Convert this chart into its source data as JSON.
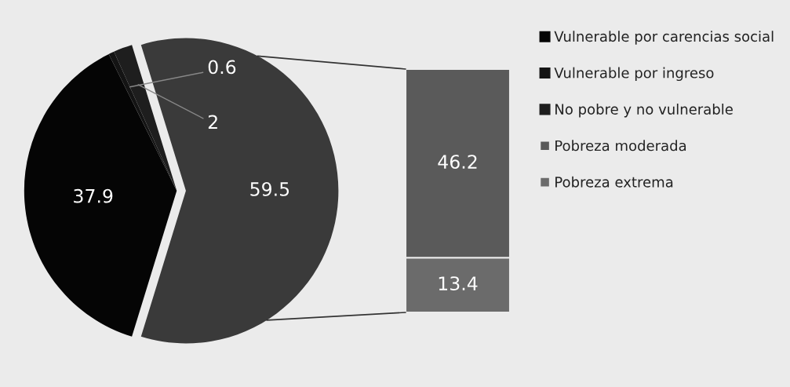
{
  "chart_data": [
    {
      "type": "pie",
      "categories": [
        "Vulnerable por carencias social",
        "Vulnerable por ingreso",
        "No pobre y no vulnerable",
        null
      ],
      "values": [
        37.9,
        0.6,
        2,
        59.5
      ],
      "colors": [
        "#050505",
        "#141414",
        "#1e1e1e",
        "#3a3a3a"
      ],
      "data_labels": true,
      "legend": "top right"
    },
    {
      "type": "bar",
      "stacked": true,
      "categories": [
        null
      ],
      "series": [
        {
          "name": "Pobreza extrema",
          "color": "#6b6b6b",
          "values": [
            13.4
          ]
        },
        {
          "name": "Pobreza moderada",
          "color": "#5a5a5a",
          "values": [
            46.2
          ]
        }
      ],
      "data_labels": true,
      "legend": "right"
    }
  ]
}
